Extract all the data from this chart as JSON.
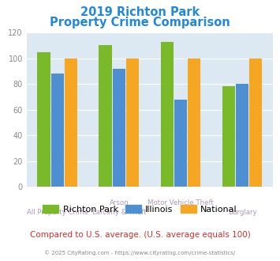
{
  "title_line1": "2019 Richton Park",
  "title_line2": "Property Crime Comparison",
  "title_color": "#2288dd",
  "categories_top": [
    "",
    "Arson",
    "Motor Vehicle Theft",
    ""
  ],
  "categories_bottom": [
    "All Property Crime",
    "Larceny & Theft",
    "",
    "Burglary"
  ],
  "richton_park": [
    105,
    110,
    113,
    78
  ],
  "illinois": [
    88,
    92,
    68,
    80
  ],
  "national": [
    100,
    100,
    100,
    100
  ],
  "colors": {
    "richton_park": "#7aba2a",
    "illinois": "#4d8fd1",
    "national": "#f5a623"
  },
  "ylim": [
    0,
    120
  ],
  "yticks": [
    0,
    20,
    40,
    60,
    80,
    100,
    120
  ],
  "plot_bg_color": "#dce9f2",
  "legend_labels": [
    "Richton Park",
    "Illinois",
    "National"
  ],
  "footer_note": "Compared to U.S. average. (U.S. average equals 100)",
  "footer_note_color": "#cc3333",
  "copyright_text": "© 2025 CityRating.com - https://www.cityrating.com/crime-statistics/",
  "copyright_color": "#888888"
}
